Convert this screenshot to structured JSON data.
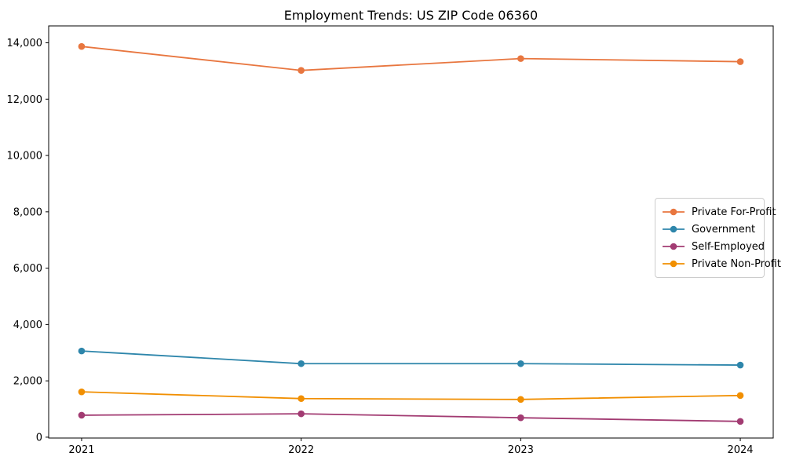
{
  "page": {
    "background_color": "#ffffff"
  },
  "chart_data": {
    "type": "line",
    "title": "Employment Trends: US ZIP Code 06360",
    "xlabel": "",
    "ylabel": "",
    "categories": [
      "2021",
      "2022",
      "2023",
      "2024"
    ],
    "series": [
      {
        "name": "Private For-Profit",
        "color": "#e8763f",
        "values": [
          13870,
          13020,
          13440,
          13330
        ]
      },
      {
        "name": "Government",
        "color": "#2e86ab",
        "values": [
          3060,
          2610,
          2610,
          2560
        ]
      },
      {
        "name": "Self-Employed",
        "color": "#a23b72",
        "values": [
          780,
          830,
          690,
          560
        ]
      },
      {
        "name": "Private Non-Profit",
        "color": "#f18f01",
        "values": [
          1610,
          1370,
          1340,
          1480
        ]
      }
    ],
    "ylim": [
      -30,
      14600
    ],
    "yticks": [
      0,
      2000,
      4000,
      6000,
      8000,
      10000,
      12000,
      14000
    ],
    "ytick_labels": [
      "0",
      "2,000",
      "4,000",
      "6,000",
      "8,000",
      "10,000",
      "12,000",
      "14,000"
    ],
    "grid": false,
    "legend_position": "center right",
    "marker": "circle",
    "line_width": 1.8,
    "axis_color": "#000000"
  }
}
